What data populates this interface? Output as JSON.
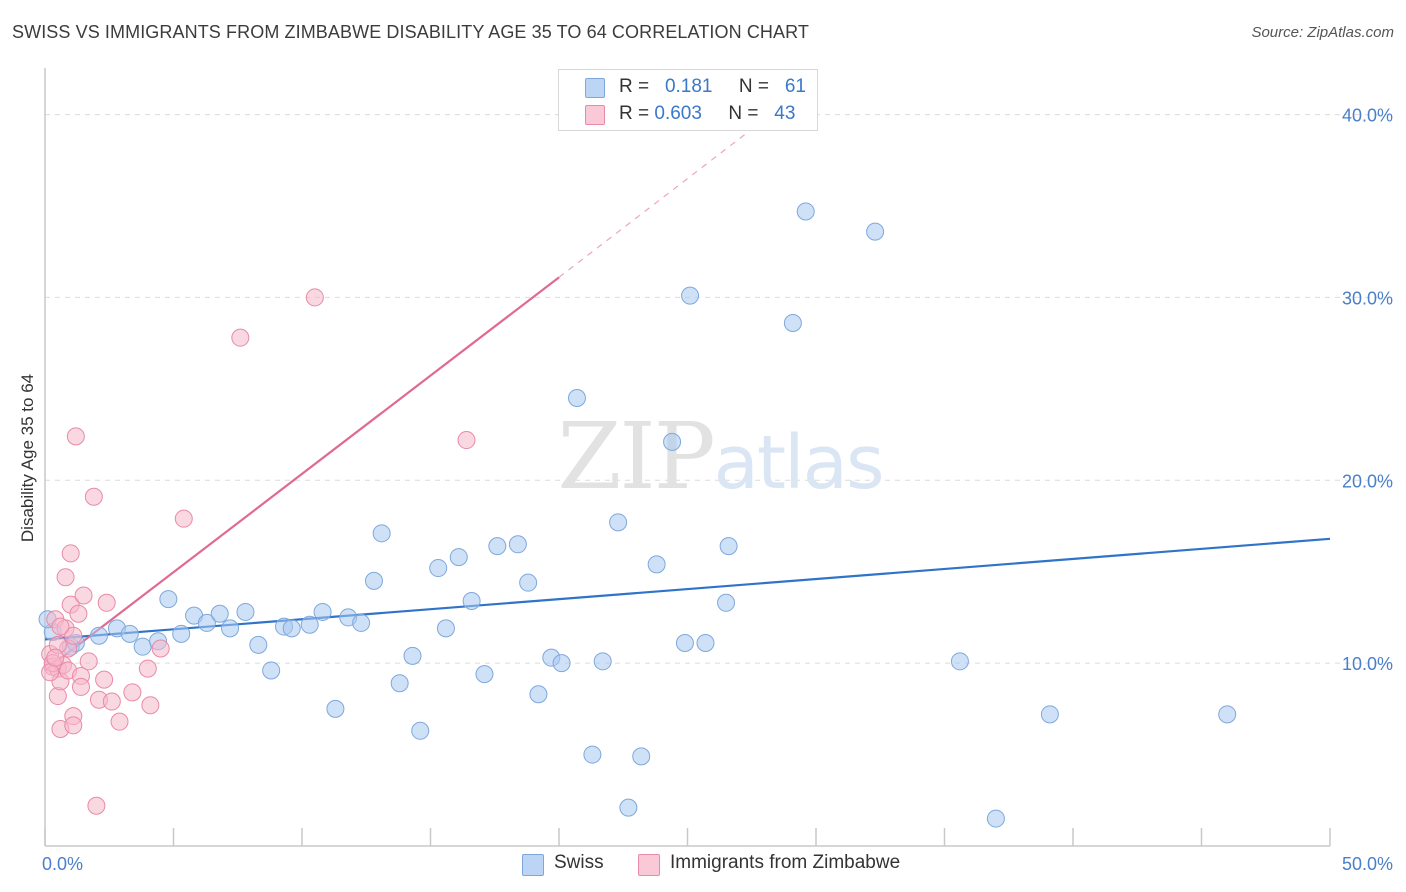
{
  "chart_data": {
    "type": "scatter",
    "title": "SWISS VS IMMIGRANTS FROM ZIMBABWE DISABILITY AGE 35 TO 64 CORRELATION CHART",
    "source": "Source: ZipAtlas.com",
    "ylabel": "Disability Age 35 to 64",
    "xlabel": "",
    "xlim": [
      0,
      50
    ],
    "ylim": [
      0,
      42
    ],
    "x_tick_labels": [
      "0.0%",
      "50.0%"
    ],
    "y_ticks": [
      10,
      20,
      30,
      40
    ],
    "y_tick_labels": [
      "10.0%",
      "20.0%",
      "30.0%",
      "40.0%"
    ],
    "watermark": "ZIPatlas",
    "legend": {
      "rows": [
        {
          "r_label": "R =",
          "r_value": "0.181",
          "n_label": "N =",
          "n_value": "61"
        },
        {
          "r_label": "R =",
          "r_value": "0.603",
          "n_label": "N =",
          "n_value": "43"
        }
      ]
    },
    "series": [
      {
        "name": "Swiss",
        "color": "#a8c8f0",
        "stroke": "#7ea8dc",
        "line_color": "#2f74c8",
        "trend": {
          "x0": 0.0,
          "y0": 11.3,
          "x1": 50.0,
          "y1": 16.8
        },
        "points": [
          [
            0.3,
            11.7
          ],
          [
            1.0,
            10.9
          ],
          [
            1.2,
            11.1
          ],
          [
            2.1,
            11.5
          ],
          [
            2.8,
            11.9
          ],
          [
            3.3,
            11.6
          ],
          [
            3.8,
            10.9
          ],
          [
            4.4,
            11.2
          ],
          [
            4.8,
            13.5
          ],
          [
            5.3,
            11.6
          ],
          [
            5.8,
            12.6
          ],
          [
            6.3,
            12.2
          ],
          [
            6.8,
            12.7
          ],
          [
            7.2,
            11.9
          ],
          [
            7.8,
            12.8
          ],
          [
            8.3,
            11.0
          ],
          [
            8.8,
            9.6
          ],
          [
            9.3,
            12.0
          ],
          [
            9.6,
            11.9
          ],
          [
            10.3,
            12.1
          ],
          [
            10.8,
            12.8
          ],
          [
            11.3,
            7.5
          ],
          [
            11.8,
            12.5
          ],
          [
            12.3,
            12.2
          ],
          [
            12.8,
            14.5
          ],
          [
            13.1,
            17.1
          ],
          [
            13.8,
            8.9
          ],
          [
            14.3,
            10.4
          ],
          [
            14.6,
            6.3
          ],
          [
            15.3,
            15.2
          ],
          [
            15.6,
            11.9
          ],
          [
            16.1,
            15.8
          ],
          [
            16.6,
            13.4
          ],
          [
            17.1,
            9.4
          ],
          [
            17.6,
            16.4
          ],
          [
            18.4,
            16.5
          ],
          [
            18.8,
            14.4
          ],
          [
            19.2,
            8.3
          ],
          [
            19.7,
            10.3
          ],
          [
            20.1,
            10.0
          ],
          [
            20.7,
            24.5
          ],
          [
            21.3,
            5.0
          ],
          [
            21.7,
            10.1
          ],
          [
            22.3,
            17.7
          ],
          [
            22.7,
            2.1
          ],
          [
            23.2,
            4.9
          ],
          [
            23.8,
            15.4
          ],
          [
            24.4,
            22.1
          ],
          [
            24.9,
            11.1
          ],
          [
            25.1,
            30.1
          ],
          [
            25.7,
            11.1
          ],
          [
            26.5,
            13.3
          ],
          [
            26.6,
            16.4
          ],
          [
            29.1,
            28.6
          ],
          [
            29.6,
            34.7
          ],
          [
            32.3,
            33.6
          ],
          [
            35.6,
            10.1
          ],
          [
            37.0,
            1.5
          ],
          [
            39.1,
            7.2
          ],
          [
            46.0,
            7.2
          ],
          [
            0.1,
            12.4
          ]
        ]
      },
      {
        "name": "Immigrants from Zimbabwe",
        "color": "#f6b8cb",
        "stroke": "#e88aa8",
        "line_color": "#e06a90",
        "trend": {
          "x0": 0.0,
          "y0": 9.6,
          "x1": 20.0,
          "y1": 31.1,
          "dash_to_x": 27.5,
          "dash_to_y": 39.2
        },
        "points": [
          [
            0.2,
            10.5
          ],
          [
            0.3,
            9.8
          ],
          [
            0.4,
            12.4
          ],
          [
            0.5,
            9.7
          ],
          [
            0.5,
            8.2
          ],
          [
            0.6,
            9.0
          ],
          [
            0.6,
            6.4
          ],
          [
            0.7,
            9.9
          ],
          [
            0.8,
            14.7
          ],
          [
            0.8,
            11.9
          ],
          [
            0.9,
            9.6
          ],
          [
            0.9,
            10.8
          ],
          [
            1.0,
            16.0
          ],
          [
            1.0,
            13.2
          ],
          [
            1.1,
            11.5
          ],
          [
            1.1,
            7.1
          ],
          [
            1.1,
            6.6
          ],
          [
            1.2,
            22.4
          ],
          [
            1.3,
            12.7
          ],
          [
            1.4,
            9.3
          ],
          [
            1.4,
            8.7
          ],
          [
            1.5,
            13.7
          ],
          [
            1.7,
            10.1
          ],
          [
            1.9,
            19.1
          ],
          [
            2.0,
            2.2
          ],
          [
            2.1,
            8.0
          ],
          [
            2.3,
            9.1
          ],
          [
            2.4,
            13.3
          ],
          [
            2.6,
            7.9
          ],
          [
            2.9,
            6.8
          ],
          [
            3.4,
            8.4
          ],
          [
            4.0,
            9.7
          ],
          [
            4.1,
            7.7
          ],
          [
            4.5,
            10.8
          ],
          [
            5.4,
            17.9
          ],
          [
            7.6,
            27.8
          ],
          [
            10.5,
            30.0
          ],
          [
            16.4,
            22.2
          ],
          [
            0.3,
            10.0
          ],
          [
            0.5,
            11.0
          ],
          [
            0.2,
            9.5
          ],
          [
            0.4,
            10.3
          ],
          [
            0.6,
            12.0
          ]
        ]
      }
    ]
  }
}
